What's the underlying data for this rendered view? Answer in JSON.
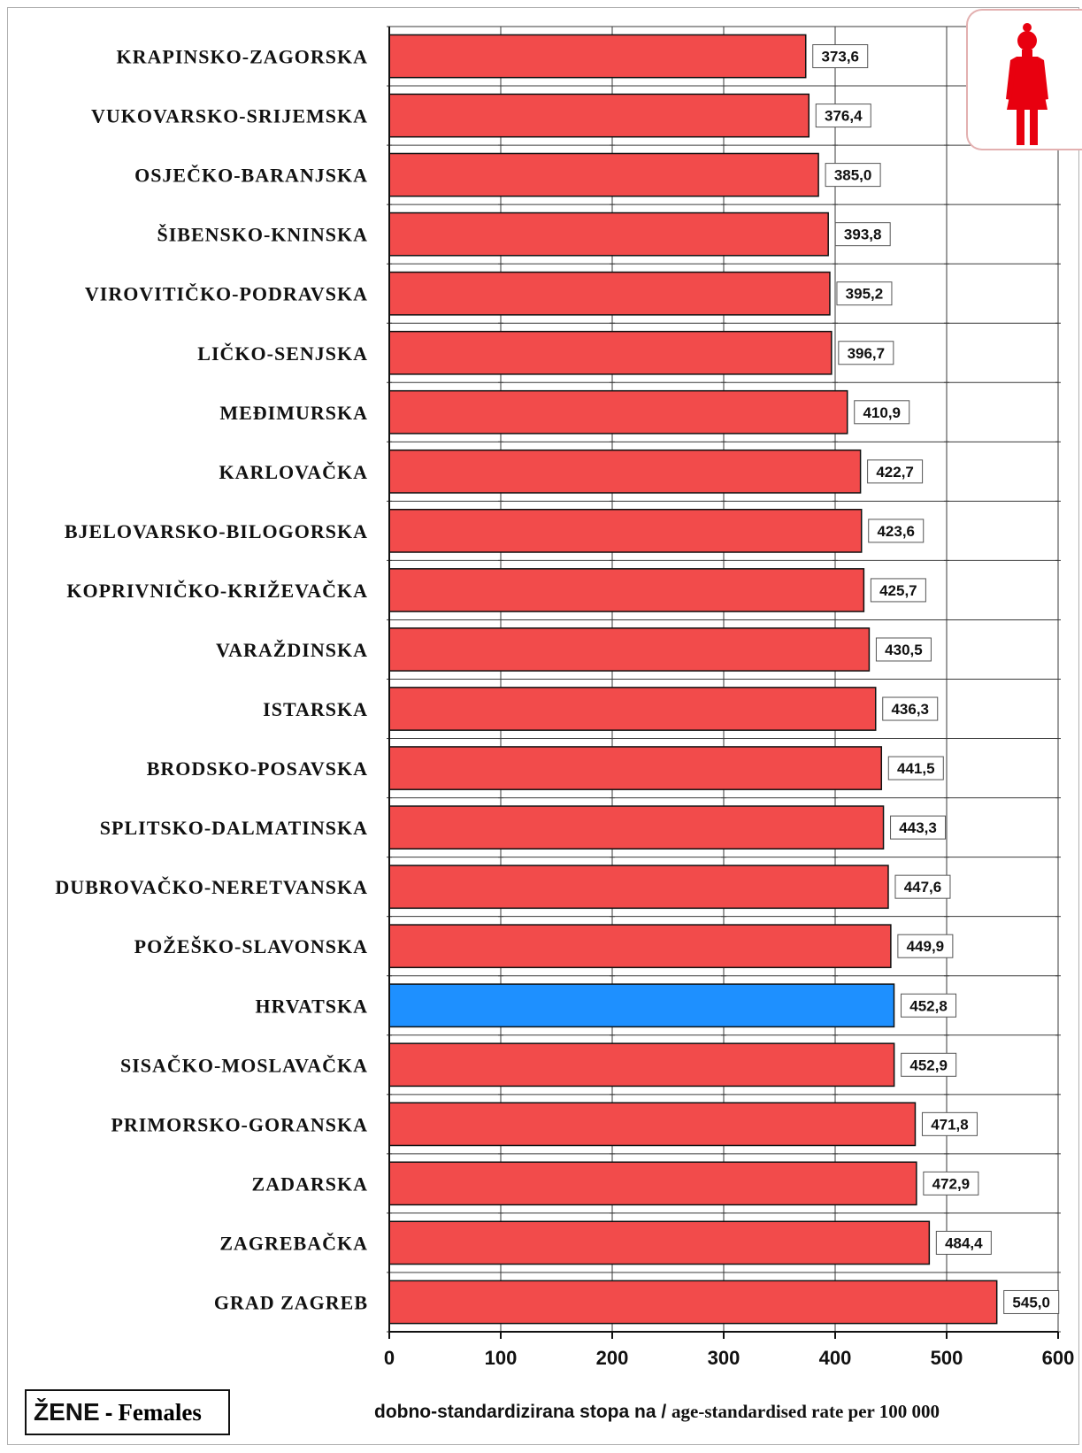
{
  "chart_data": {
    "type": "bar",
    "orientation": "horizontal",
    "categories": [
      "KRAPINSKO-ZAGORSKA",
      "VUKOVARSKO-SRIJEMSKA",
      "OSJEČKO-BARANJSKA",
      "ŠIBENSKO-KNINSKA",
      "VIROVITIČKO-PODRAVSKA",
      "LIČKO-SENJSKA",
      "MEĐIMURSKA",
      "KARLOVAČKA",
      "BJELOVARSKO-BILOGORSKA",
      "KOPRIVNIČKO-KRIŽEVAČKA",
      "VARAŽDINSKA",
      "ISTARSKA",
      "BRODSKO-POSAVSKA",
      "SPLITSKO-DALMATINSKA",
      "DUBROVAČKO-NERETVANSKA",
      "POŽEŠKO-SLAVONSKA",
      "HRVATSKA",
      "SISAČKO-MOSLAVAČKA",
      "PRIMORSKO-GORANSKA",
      "ZADARSKA",
      "ZAGREBAČKA",
      "GRAD ZAGREB"
    ],
    "values": [
      373.6,
      376.4,
      385.0,
      393.8,
      395.2,
      396.7,
      410.9,
      422.7,
      423.6,
      425.7,
      430.5,
      436.3,
      441.5,
      443.3,
      447.6,
      449.9,
      452.8,
      452.9,
      471.8,
      472.9,
      484.4,
      545.0
    ],
    "value_labels": [
      "373,6",
      "376,4",
      "385,0",
      "393,8",
      "395,2",
      "396,7",
      "410,9",
      "422,7",
      "423,6",
      "425,7",
      "430,5",
      "436,3",
      "441,5",
      "443,3",
      "447,6",
      "449,9",
      "452,8",
      "452,9",
      "471,8",
      "472,9",
      "484,4",
      "545,0"
    ],
    "highlight_category": "HRVATSKA",
    "xlim": [
      0,
      600
    ],
    "xticks": [
      0,
      100,
      200,
      300,
      400,
      500,
      600
    ],
    "grid": true,
    "colors": {
      "bar": "#f24b4b",
      "highlight": "#1e90ff",
      "icon": "#e8000f"
    },
    "xlabel": {
      "hr": "dobno-standardizirana stopa na / ",
      "en": "age-standardised rate per 100 000"
    },
    "legend": {
      "zene": "ŽENE",
      "sep": "-",
      "females": "Females"
    }
  }
}
